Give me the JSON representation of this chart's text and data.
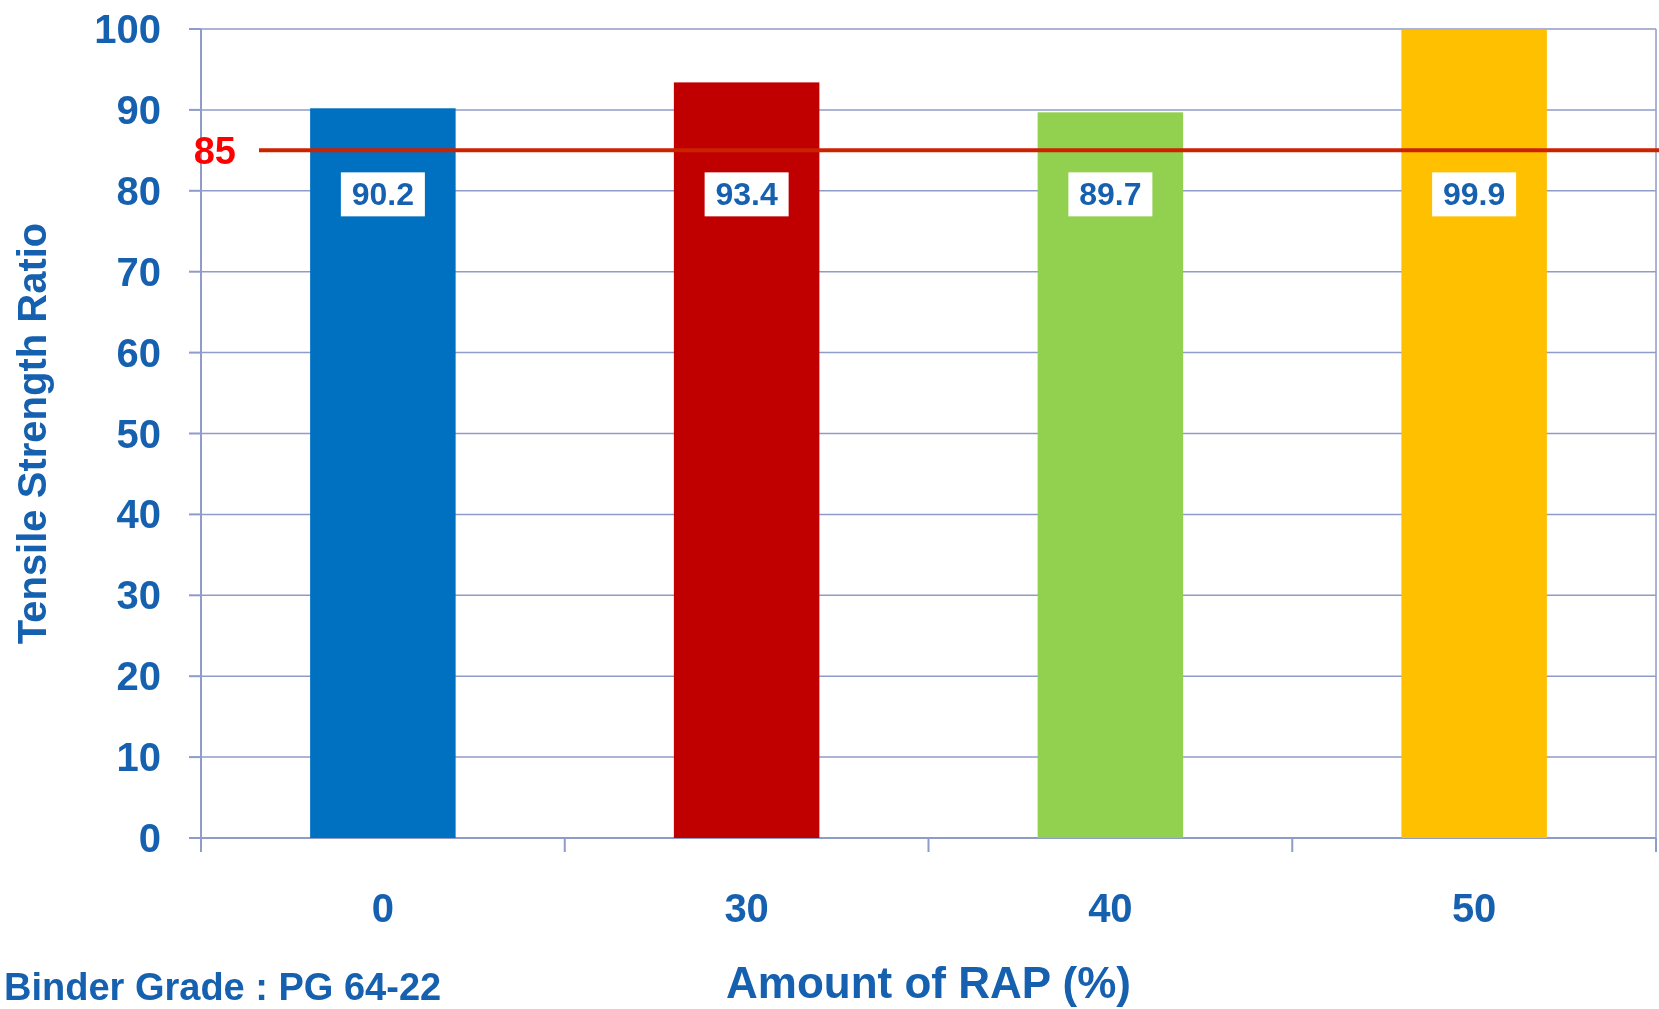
{
  "chart_data": {
    "type": "bar",
    "xlabel": "Amount of RAP (%)",
    "ylabel": "Tensile Strength Ratio",
    "categories": [
      "0",
      "30",
      "40",
      "50"
    ],
    "values": [
      90.2,
      93.4,
      89.7,
      99.9
    ],
    "colors": [
      "#0070c0",
      "#c00000",
      "#92d050",
      "#ffc000"
    ],
    "ylim": [
      0,
      100
    ],
    "yticks": [
      0,
      10,
      20,
      30,
      40,
      50,
      60,
      70,
      80,
      90,
      100
    ],
    "grid": "y",
    "data_labels": true,
    "ref_lines": [
      {
        "axis": "y",
        "value": 85,
        "label": "85",
        "color": "#cc2200"
      }
    ],
    "annotations": [
      "Binder Grade : PG 64-22"
    ]
  }
}
